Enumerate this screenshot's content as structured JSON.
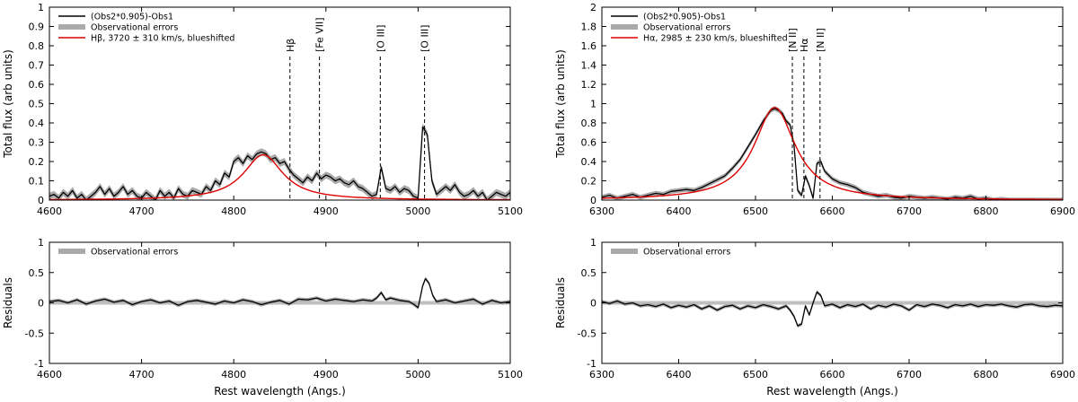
{
  "chart_data": [
    {
      "type": "line",
      "panel": "top-left",
      "xlabel": "",
      "ylabel": "Total flux (arb units)",
      "xlim": [
        4600,
        5100
      ],
      "ylim": [
        0,
        1
      ],
      "xticks": [
        "4600",
        "4700",
        "4800",
        "4900",
        "5000",
        "5100"
      ],
      "yticks": [
        "0",
        "0.1",
        "0.2",
        "0.3",
        "0.4",
        "0.5",
        "0.6",
        "0.7",
        "0.8",
        "0.9",
        "1"
      ],
      "legend": {
        "position": "top-left",
        "entries": [
          {
            "label": "(Obs2*0.905)-Obs1",
            "color": "#000000",
            "style": "line"
          },
          {
            "label": "Observational errors",
            "color": "#aaaaaa",
            "style": "band"
          },
          {
            "label": "Hβ, 3720 ± 310 km/s, blueshifted",
            "color": "#dd0000",
            "style": "line"
          }
        ]
      },
      "line_markers": [
        {
          "label": "Hβ",
          "x": 4861
        },
        {
          "label": "[Fe VII]",
          "x": 4893
        },
        {
          "label": "[O III]",
          "x": 4959
        },
        {
          "label": "[O III]",
          "x": 5007
        }
      ],
      "series": [
        {
          "name": "(Obs2*0.905)-Obs1",
          "color": "#000000",
          "error": 0.018,
          "x": [
            4600,
            4605,
            4610,
            4615,
            4620,
            4625,
            4630,
            4635,
            4640,
            4645,
            4650,
            4655,
            4660,
            4665,
            4670,
            4675,
            4680,
            4685,
            4690,
            4695,
            4700,
            4705,
            4710,
            4715,
            4720,
            4725,
            4730,
            4735,
            4740,
            4745,
            4750,
            4755,
            4760,
            4765,
            4770,
            4775,
            4780,
            4785,
            4790,
            4795,
            4800,
            4805,
            4810,
            4815,
            4820,
            4825,
            4830,
            4835,
            4840,
            4845,
            4850,
            4855,
            4860,
            4865,
            4870,
            4875,
            4880,
            4885,
            4890,
            4895,
            4900,
            4905,
            4910,
            4915,
            4920,
            4925,
            4930,
            4935,
            4940,
            4945,
            4950,
            4955,
            4960,
            4965,
            4970,
            4975,
            4980,
            4985,
            4990,
            4995,
            5000,
            5005,
            5010,
            5015,
            5020,
            5025,
            5030,
            5035,
            5040,
            5045,
            5050,
            5055,
            5060,
            5065,
            5070,
            5075,
            5080,
            5085,
            5090,
            5095,
            5100
          ],
          "values": [
            0.02,
            0.03,
            0.01,
            0.04,
            0.02,
            0.05,
            0.01,
            0.03,
            0.0,
            0.02,
            0.04,
            0.07,
            0.03,
            0.06,
            0.02,
            0.04,
            0.07,
            0.03,
            0.05,
            0.02,
            0.01,
            0.04,
            0.02,
            0.0,
            0.05,
            0.02,
            0.04,
            0.01,
            0.06,
            0.03,
            0.02,
            0.05,
            0.04,
            0.03,
            0.07,
            0.05,
            0.1,
            0.08,
            0.14,
            0.12,
            0.2,
            0.22,
            0.19,
            0.23,
            0.21,
            0.24,
            0.25,
            0.24,
            0.21,
            0.22,
            0.19,
            0.2,
            0.16,
            0.13,
            0.11,
            0.09,
            0.12,
            0.1,
            0.14,
            0.11,
            0.13,
            0.12,
            0.1,
            0.11,
            0.09,
            0.08,
            0.1,
            0.07,
            0.06,
            0.04,
            0.02,
            0.03,
            0.17,
            0.06,
            0.05,
            0.07,
            0.04,
            0.06,
            0.05,
            0.02,
            0.01,
            0.38,
            0.34,
            0.1,
            0.03,
            0.05,
            0.07,
            0.05,
            0.08,
            0.04,
            0.02,
            0.03,
            0.05,
            0.02,
            0.04,
            0.0,
            0.02,
            0.04,
            0.03,
            0.02,
            0.04
          ]
        },
        {
          "name": "Hβ, 3720 ± 310 km/s, blueshifted",
          "color": "#dd0000",
          "model": "lorentzian",
          "center": 4832,
          "fwhm": 52,
          "amplitude": 0.235
        }
      ]
    },
    {
      "type": "line",
      "panel": "top-right",
      "xlabel": "",
      "ylabel": "Total flux (arb units)",
      "xlim": [
        6300,
        6900
      ],
      "ylim": [
        0,
        2
      ],
      "xticks": [
        "6300",
        "6400",
        "6500",
        "6600",
        "6700",
        "6800",
        "6900"
      ],
      "yticks": [
        "0",
        "0.2",
        "0.4",
        "0.6",
        "0.8",
        "1",
        "1.2",
        "1.4",
        "1.6",
        "1.8",
        "2"
      ],
      "legend": {
        "position": "top-left",
        "entries": [
          {
            "label": "(Obs2*0.905)-Obs1",
            "color": "#000000",
            "style": "line"
          },
          {
            "label": "Observational errors",
            "color": "#aaaaaa",
            "style": "band"
          },
          {
            "label": "Hα, 2985 ± 230 km/s, blueshifted",
            "color": "#dd0000",
            "style": "line"
          }
        ]
      },
      "line_markers": [
        {
          "label": "[N II]",
          "x": 6548
        },
        {
          "label": "Hα",
          "x": 6563
        },
        {
          "label": "[N II]",
          "x": 6584
        }
      ],
      "series": [
        {
          "name": "(Obs2*0.905)-Obs1",
          "color": "#000000",
          "error": 0.025,
          "x": [
            6300,
            6310,
            6320,
            6330,
            6340,
            6350,
            6360,
            6370,
            6380,
            6390,
            6400,
            6410,
            6420,
            6430,
            6440,
            6450,
            6460,
            6470,
            6480,
            6490,
            6500,
            6510,
            6520,
            6525,
            6530,
            6535,
            6540,
            6545,
            6550,
            6555,
            6560,
            6565,
            6570,
            6575,
            6580,
            6585,
            6590,
            6600,
            6610,
            6620,
            6630,
            6640,
            6650,
            6660,
            6670,
            6680,
            6690,
            6700,
            6710,
            6720,
            6730,
            6740,
            6750,
            6760,
            6770,
            6780,
            6790,
            6800,
            6810,
            6820,
            6830,
            6840,
            6850,
            6860,
            6870,
            6880,
            6890,
            6900
          ],
          "values": [
            0.03,
            0.05,
            0.02,
            0.04,
            0.06,
            0.03,
            0.05,
            0.07,
            0.06,
            0.09,
            0.1,
            0.11,
            0.1,
            0.13,
            0.17,
            0.21,
            0.25,
            0.33,
            0.42,
            0.55,
            0.68,
            0.82,
            0.93,
            0.95,
            0.93,
            0.9,
            0.82,
            0.78,
            0.58,
            0.1,
            0.05,
            0.25,
            0.15,
            0.02,
            0.38,
            0.4,
            0.3,
            0.22,
            0.18,
            0.16,
            0.13,
            0.08,
            0.06,
            0.04,
            0.05,
            0.03,
            0.02,
            0.04,
            0.03,
            0.02,
            0.03,
            0.02,
            0.01,
            0.03,
            0.02,
            0.04,
            0.01,
            0.02,
            0.0,
            0.01,
            0.0,
            0.0,
            0.0,
            0.0,
            0.0,
            0.0,
            0.0,
            0.0
          ]
        },
        {
          "name": "Hα, 2985 ± 230 km/s, blueshifted",
          "color": "#dd0000",
          "model": "lorentzian",
          "center": 6525,
          "fwhm": 65,
          "amplitude": 0.96
        }
      ]
    },
    {
      "type": "line",
      "panel": "bottom-left",
      "xlabel": "Rest wavelength (Angs.)",
      "ylabel": "Residuals",
      "xlim": [
        4600,
        5100
      ],
      "ylim": [
        -1,
        1
      ],
      "xticks": [
        "4600",
        "4700",
        "4800",
        "4900",
        "5000",
        "5100"
      ],
      "yticks": [
        "-1",
        "-0.5",
        "0",
        "0.5",
        "1"
      ],
      "legend": {
        "position": "top-left",
        "entries": [
          {
            "label": "Observational errors",
            "color": "#aaaaaa",
            "style": "band"
          }
        ]
      },
      "series": [
        {
          "name": "Residuals",
          "color": "#000000",
          "error": 0.03,
          "x": [
            4600,
            4610,
            4620,
            4630,
            4640,
            4650,
            4660,
            4670,
            4680,
            4690,
            4700,
            4710,
            4720,
            4730,
            4740,
            4750,
            4760,
            4770,
            4780,
            4790,
            4800,
            4810,
            4820,
            4830,
            4840,
            4850,
            4860,
            4870,
            4880,
            4890,
            4900,
            4910,
            4920,
            4930,
            4940,
            4950,
            4955,
            4960,
            4965,
            4970,
            4980,
            4990,
            4995,
            5000,
            5005,
            5008,
            5012,
            5016,
            5020,
            5030,
            5040,
            5050,
            5060,
            5070,
            5080,
            5090,
            5100
          ],
          "values": [
            0.02,
            0.04,
            0.0,
            0.05,
            -0.02,
            0.03,
            0.06,
            0.01,
            0.04,
            -0.03,
            0.02,
            0.05,
            0.0,
            0.03,
            -0.04,
            0.02,
            0.04,
            0.01,
            -0.02,
            0.03,
            0.0,
            0.05,
            0.02,
            -0.03,
            0.01,
            0.04,
            -0.02,
            0.06,
            0.05,
            0.08,
            0.03,
            0.06,
            0.04,
            0.02,
            0.05,
            0.03,
            0.08,
            0.17,
            0.05,
            0.08,
            0.04,
            0.02,
            -0.02,
            -0.08,
            0.28,
            0.4,
            0.32,
            0.12,
            0.02,
            0.05,
            0.0,
            0.03,
            0.06,
            -0.02,
            0.04,
            0.0,
            0.02
          ]
        }
      ]
    },
    {
      "type": "line",
      "panel": "bottom-right",
      "xlabel": "Rest wavelength (Angs.)",
      "ylabel": "Residuals",
      "xlim": [
        6300,
        6900
      ],
      "ylim": [
        -1,
        1
      ],
      "xticks": [
        "6300",
        "6400",
        "6500",
        "6600",
        "6700",
        "6800",
        "6900"
      ],
      "yticks": [
        "-1",
        "-0.5",
        "0",
        "0.5",
        "1"
      ],
      "legend": {
        "position": "top-left",
        "entries": [
          {
            "label": "Observational errors",
            "color": "#aaaaaa",
            "style": "band"
          }
        ]
      },
      "series": [
        {
          "name": "Residuals",
          "color": "#000000",
          "error": 0.03,
          "x": [
            6300,
            6310,
            6320,
            6330,
            6340,
            6350,
            6360,
            6370,
            6380,
            6390,
            6400,
            6410,
            6420,
            6430,
            6440,
            6450,
            6460,
            6470,
            6480,
            6490,
            6500,
            6510,
            6520,
            6530,
            6540,
            6545,
            6550,
            6555,
            6560,
            6565,
            6570,
            6575,
            6580,
            6585,
            6590,
            6600,
            6610,
            6620,
            6630,
            6640,
            6650,
            6660,
            6670,
            6680,
            6690,
            6700,
            6710,
            6720,
            6730,
            6740,
            6750,
            6760,
            6770,
            6780,
            6790,
            6800,
            6810,
            6820,
            6830,
            6840,
            6850,
            6860,
            6870,
            6880,
            6890,
            6900
          ],
          "values": [
            0.02,
            -0.01,
            0.03,
            -0.02,
            0.0,
            -0.05,
            -0.03,
            -0.06,
            -0.02,
            -0.08,
            -0.04,
            -0.07,
            -0.03,
            -0.1,
            -0.05,
            -0.12,
            -0.06,
            -0.04,
            -0.1,
            -0.05,
            -0.08,
            -0.03,
            -0.06,
            -0.1,
            -0.05,
            -0.12,
            -0.22,
            -0.38,
            -0.35,
            -0.05,
            -0.2,
            0.0,
            0.18,
            0.12,
            -0.05,
            -0.02,
            -0.08,
            -0.03,
            -0.06,
            -0.02,
            -0.1,
            -0.04,
            -0.07,
            -0.02,
            -0.05,
            -0.12,
            -0.03,
            -0.06,
            -0.02,
            -0.04,
            -0.08,
            -0.03,
            -0.05,
            -0.02,
            -0.06,
            -0.03,
            -0.04,
            -0.02,
            -0.05,
            -0.07,
            -0.03,
            -0.02,
            -0.05,
            -0.06,
            -0.04,
            -0.05
          ]
        }
      ]
    }
  ]
}
